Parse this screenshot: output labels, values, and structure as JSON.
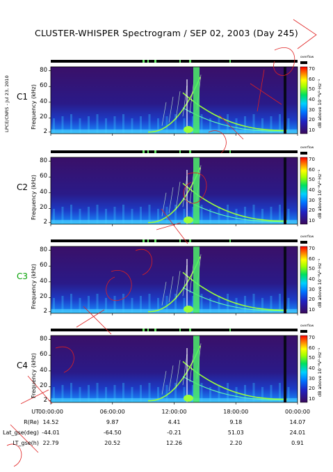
{
  "title": "CLUSTER-WHISPER Spectrogram / SEP 02, 2003 (Day 245)",
  "stamp": "LPCE/CNRS - Jul 23, 2010",
  "chart_data": {
    "type": "heatmap",
    "x_axis_ut": [
      "00:00:00",
      "06:00:00",
      "12:00:00",
      "18:00:00",
      "00:00:00"
    ],
    "panels": [
      {
        "spacecraft": "C1",
        "spacecraft_color": "#000000"
      },
      {
        "spacecraft": "C2",
        "spacecraft_color": "#000000"
      },
      {
        "spacecraft": "C3",
        "spacecraft_color": "#00a000"
      },
      {
        "spacecraft": "C4",
        "spacecraft_color": "#000000"
      }
    ],
    "ylabel": "Frequency (kHz)",
    "yticks": [
      "80",
      "60",
      "40",
      "20",
      "2"
    ],
    "ylim": [
      2,
      80
    ],
    "colorbar": {
      "label": "dB above 10⁻⁸V²·Hz⁻¹",
      "overflow_label": "overflow",
      "ticks": [
        "70",
        "60",
        "50",
        "40",
        "30",
        "20",
        "10"
      ],
      "range": [
        10,
        70
      ]
    },
    "orbit_rows": [
      {
        "label": "UT",
        "values": [
          "00:00:00",
          "06:00:00",
          "12:00:00",
          "18:00:00",
          "00:00:00"
        ]
      },
      {
        "label": "R(Re)",
        "values": [
          "14.52",
          "9.87",
          "4.41",
          "9.18",
          "14.07"
        ]
      },
      {
        "label": "Lat_gse(deg)",
        "values": [
          "-44.01",
          "-64.50",
          "-0.21",
          "51.03",
          "24.01"
        ]
      },
      {
        "label": "LT_gse(h)",
        "values": [
          "22.79",
          "20.52",
          "12.26",
          "2.20",
          "0.91"
        ]
      }
    ]
  }
}
